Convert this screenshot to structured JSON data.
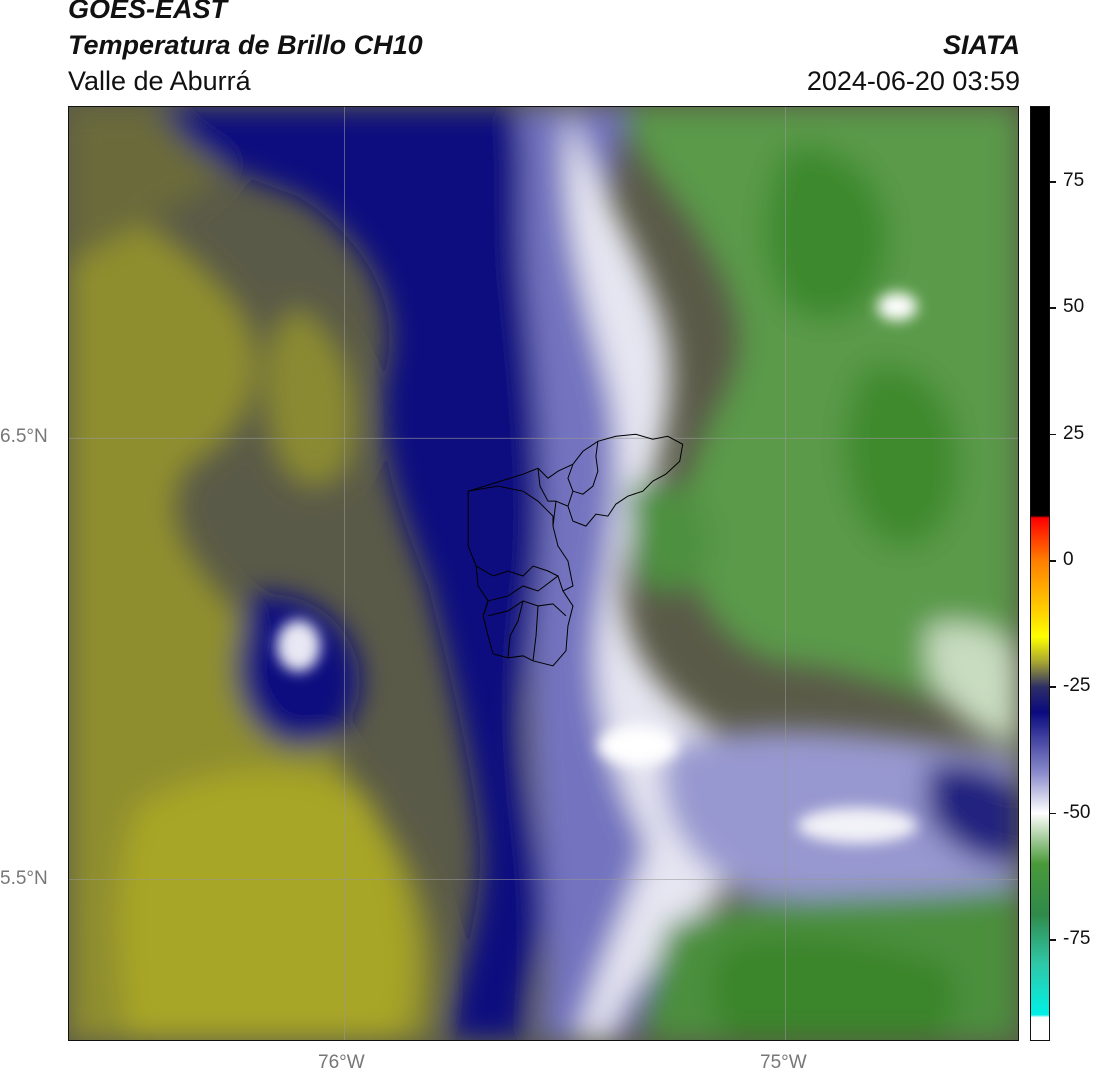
{
  "header": {
    "satellite": "GOES-EAST",
    "product": "Temperatura de Brillo CH10",
    "organization": "SIATA",
    "region": "Valle de Aburrá",
    "timestamp": "2024-06-20 03:59"
  },
  "axes": {
    "lat_labels": [
      "6.5°N",
      "5.5°N"
    ],
    "lon_labels": [
      "76°W",
      "75°W"
    ]
  },
  "colorbar": {
    "tick_labels": [
      "75",
      "50",
      "25",
      "0",
      "-25",
      "-50",
      "-75"
    ],
    "tick_values": [
      75,
      50,
      25,
      0,
      -25,
      -50,
      -75
    ],
    "stops": [
      {
        "value": 90,
        "color": "#000000"
      },
      {
        "value": 9,
        "color": "#000000"
      },
      {
        "value": 8.5,
        "color": "#ff0000"
      },
      {
        "value": 0,
        "color": "#ff7f00"
      },
      {
        "value": -10,
        "color": "#ffd000"
      },
      {
        "value": -15,
        "color": "#ffff00"
      },
      {
        "value": -20,
        "color": "#a8a830"
      },
      {
        "value": -25,
        "color": "#2e2e66"
      },
      {
        "value": -30,
        "color": "#0a0a80"
      },
      {
        "value": -42,
        "color": "#8a8acc"
      },
      {
        "value": -50,
        "color": "#ffffff"
      },
      {
        "value": -60,
        "color": "#4a9a3a"
      },
      {
        "value": -70,
        "color": "#2f8a4a"
      },
      {
        "value": -80,
        "color": "#2fc8a8"
      },
      {
        "value": -90,
        "color": "#00f0e6"
      },
      {
        "value": -90.5,
        "color": "#ffffff"
      },
      {
        "value": -95,
        "color": "#ffffff"
      }
    ]
  },
  "colors": {
    "olive": "#9c9a2a",
    "dark_olive": "#4f4f45",
    "navy": "#0c0c7a",
    "lavender": "#a3a3d6",
    "green": "#3f8a2f",
    "light_green": "#b8d4b0",
    "boundary": "#000000"
  }
}
